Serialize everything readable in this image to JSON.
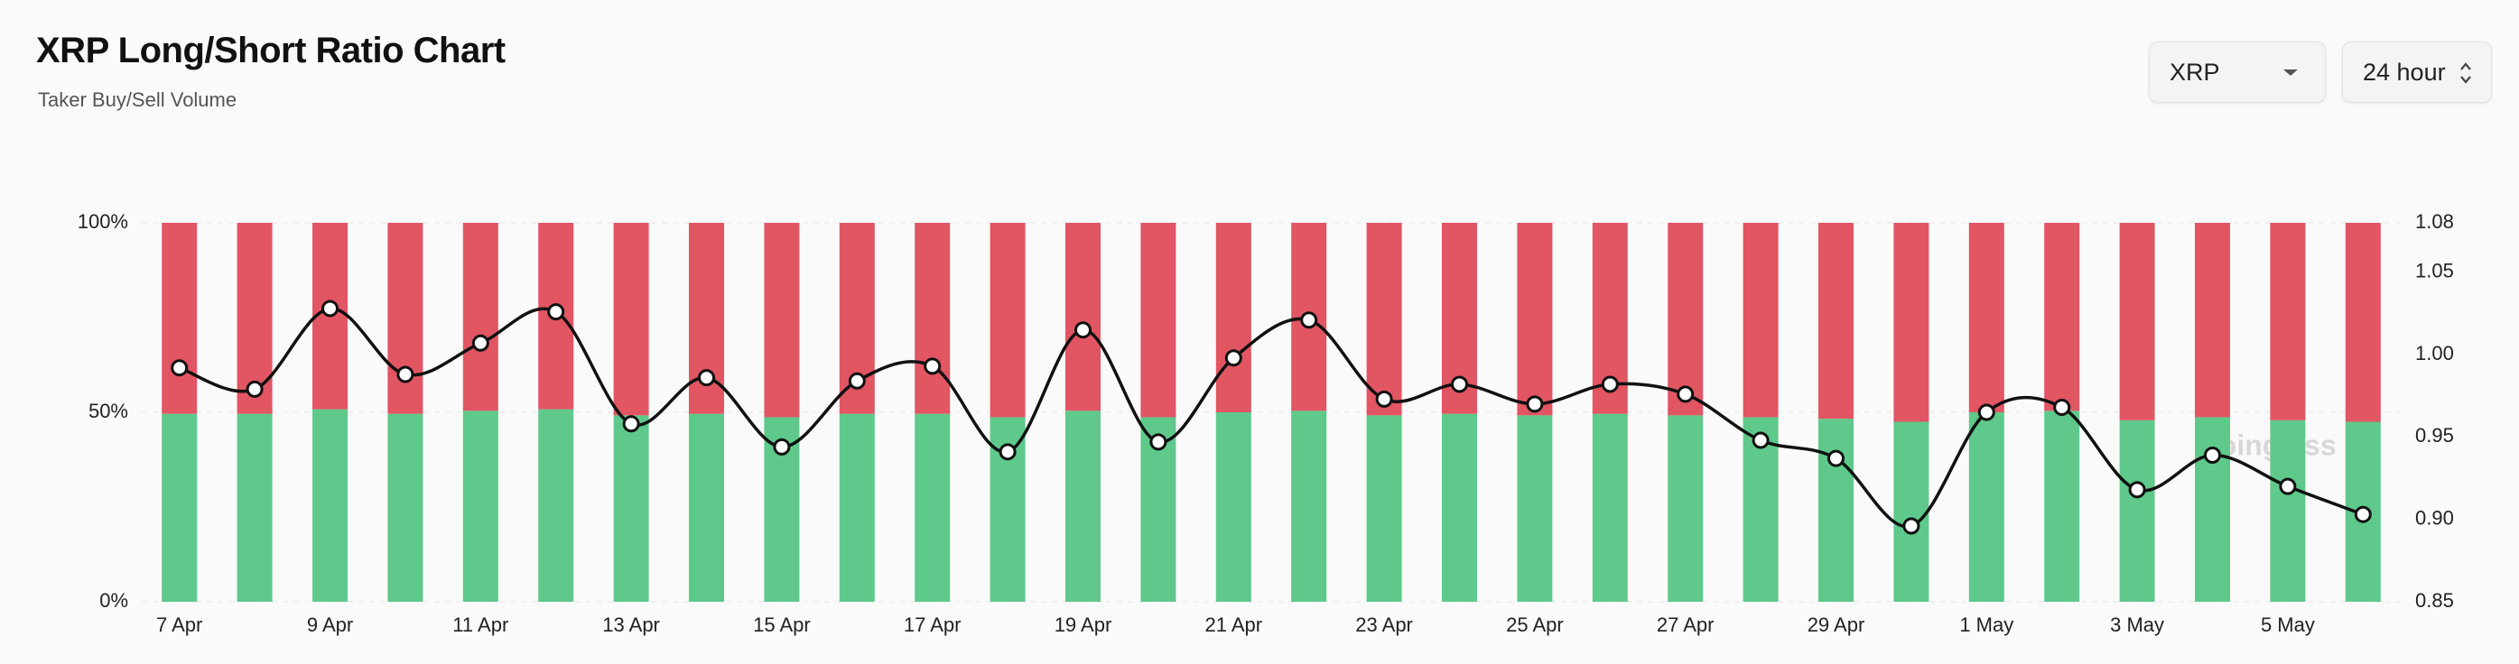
{
  "header": {
    "title": "XRP Long/Short Ratio Chart",
    "subtitle": "Taker Buy/Sell Volume"
  },
  "controls": {
    "coin": "XRP",
    "range": "24 hour"
  },
  "chart_data": {
    "type": "bar",
    "stacked": true,
    "watermark": "coinglass",
    "categories": [
      "7 Apr",
      null,
      "9 Apr",
      null,
      "11 Apr",
      null,
      "13 Apr",
      null,
      "15 Apr",
      null,
      "17 Apr",
      null,
      "19 Apr",
      null,
      "21 Apr",
      null,
      "23 Apr",
      null,
      "25 Apr",
      null,
      "27 Apr",
      null,
      "29 Apr",
      null,
      "1 May",
      null,
      "3 May",
      null,
      "5 May",
      null
    ],
    "series": [
      {
        "color": "#5ec98a",
        "values": [
          49.6,
          49.6,
          50.8,
          49.6,
          50.4,
          50.8,
          49.2,
          49.6,
          48.7,
          49.6,
          49.6,
          48.7,
          50.4,
          48.7,
          50,
          50.4,
          49.2,
          49.6,
          49.2,
          49.6,
          49.2,
          48.7,
          48.3,
          47.5,
          50,
          50.4,
          47.9,
          48.7,
          47.9,
          47.5
        ]
      },
      {
        "color": "#e25563",
        "values": [
          50.4,
          50.4,
          49.2,
          50.4,
          49.6,
          49.2,
          50.8,
          50.4,
          51.3,
          50.4,
          50.4,
          51.3,
          49.6,
          51.3,
          50,
          49.6,
          50.8,
          50.4,
          50.8,
          50.4,
          50.8,
          51.3,
          51.7,
          52.5,
          50,
          49.6,
          52.1,
          51.3,
          52.1,
          52.5
        ]
      },
      {
        "type": "line",
        "axis": "y2",
        "color": "#111111",
        "values": [
          0.992,
          0.979,
          1.028,
          0.988,
          1.007,
          1.026,
          0.958,
          0.986,
          0.944,
          0.984,
          0.993,
          0.941,
          1.015,
          0.947,
          0.998,
          1.021,
          0.973,
          0.982,
          0.97,
          0.982,
          0.976,
          0.948,
          0.937,
          0.896,
          0.965,
          0.968,
          0.918,
          0.939,
          0.92,
          0.903
        ]
      }
    ],
    "ylim": [
      0,
      100
    ],
    "yticks": [
      {
        "value": 0,
        "label": "0%"
      },
      {
        "value": 50,
        "label": "50%"
      },
      {
        "value": 100,
        "label": "100%"
      }
    ],
    "y2lim": [
      0.85,
      1.08
    ],
    "y2ticks": [
      0.85,
      {
        "value": 0.9,
        "label": "0.90"
      },
      0.95,
      {
        "value": 1,
        "label": "1.00"
      },
      1.05,
      1.08
    ],
    "grid": true
  }
}
